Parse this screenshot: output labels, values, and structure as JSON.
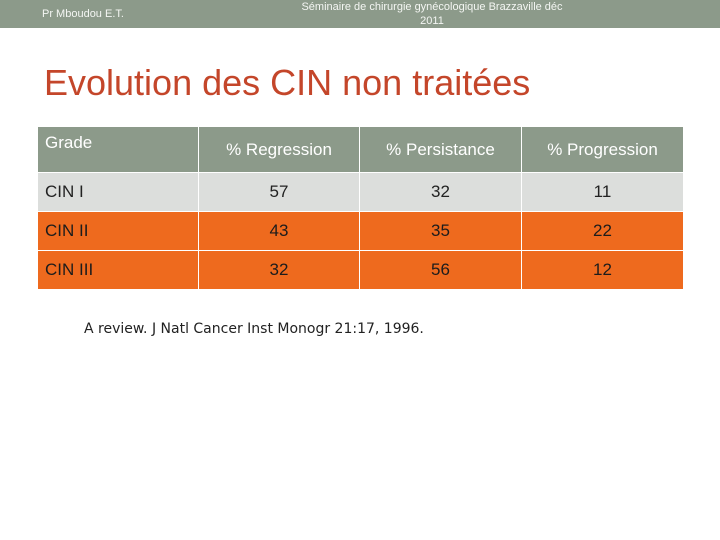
{
  "header": {
    "author": "Pr Mboudou E.T.",
    "seminar_line1": "Séminaire de chirurgie gynécologique Brazzaville déc",
    "seminar_line2": "2011"
  },
  "slide": {
    "title": "Evolution des CIN non traitées"
  },
  "table": {
    "headers": [
      "Grade",
      "% Regression",
      "% Persistance",
      "% Progression"
    ],
    "rows": [
      {
        "grade": "CIN I",
        "regression": "57",
        "persistance": "32",
        "progression": "11"
      },
      {
        "grade": "CIN II",
        "regression": "43",
        "persistance": "35",
        "progression": "22"
      },
      {
        "grade": "CIN III",
        "regression": "32",
        "persistance": "56",
        "progression": "12"
      }
    ]
  },
  "reference": "A review. J Natl Cancer Inst Monogr 21:17, 1996.",
  "colors": {
    "header_band": "#8c9a8a",
    "title": "#c4462a",
    "row_light": "#dcdedc",
    "row_accent": "#ee6a1e"
  }
}
